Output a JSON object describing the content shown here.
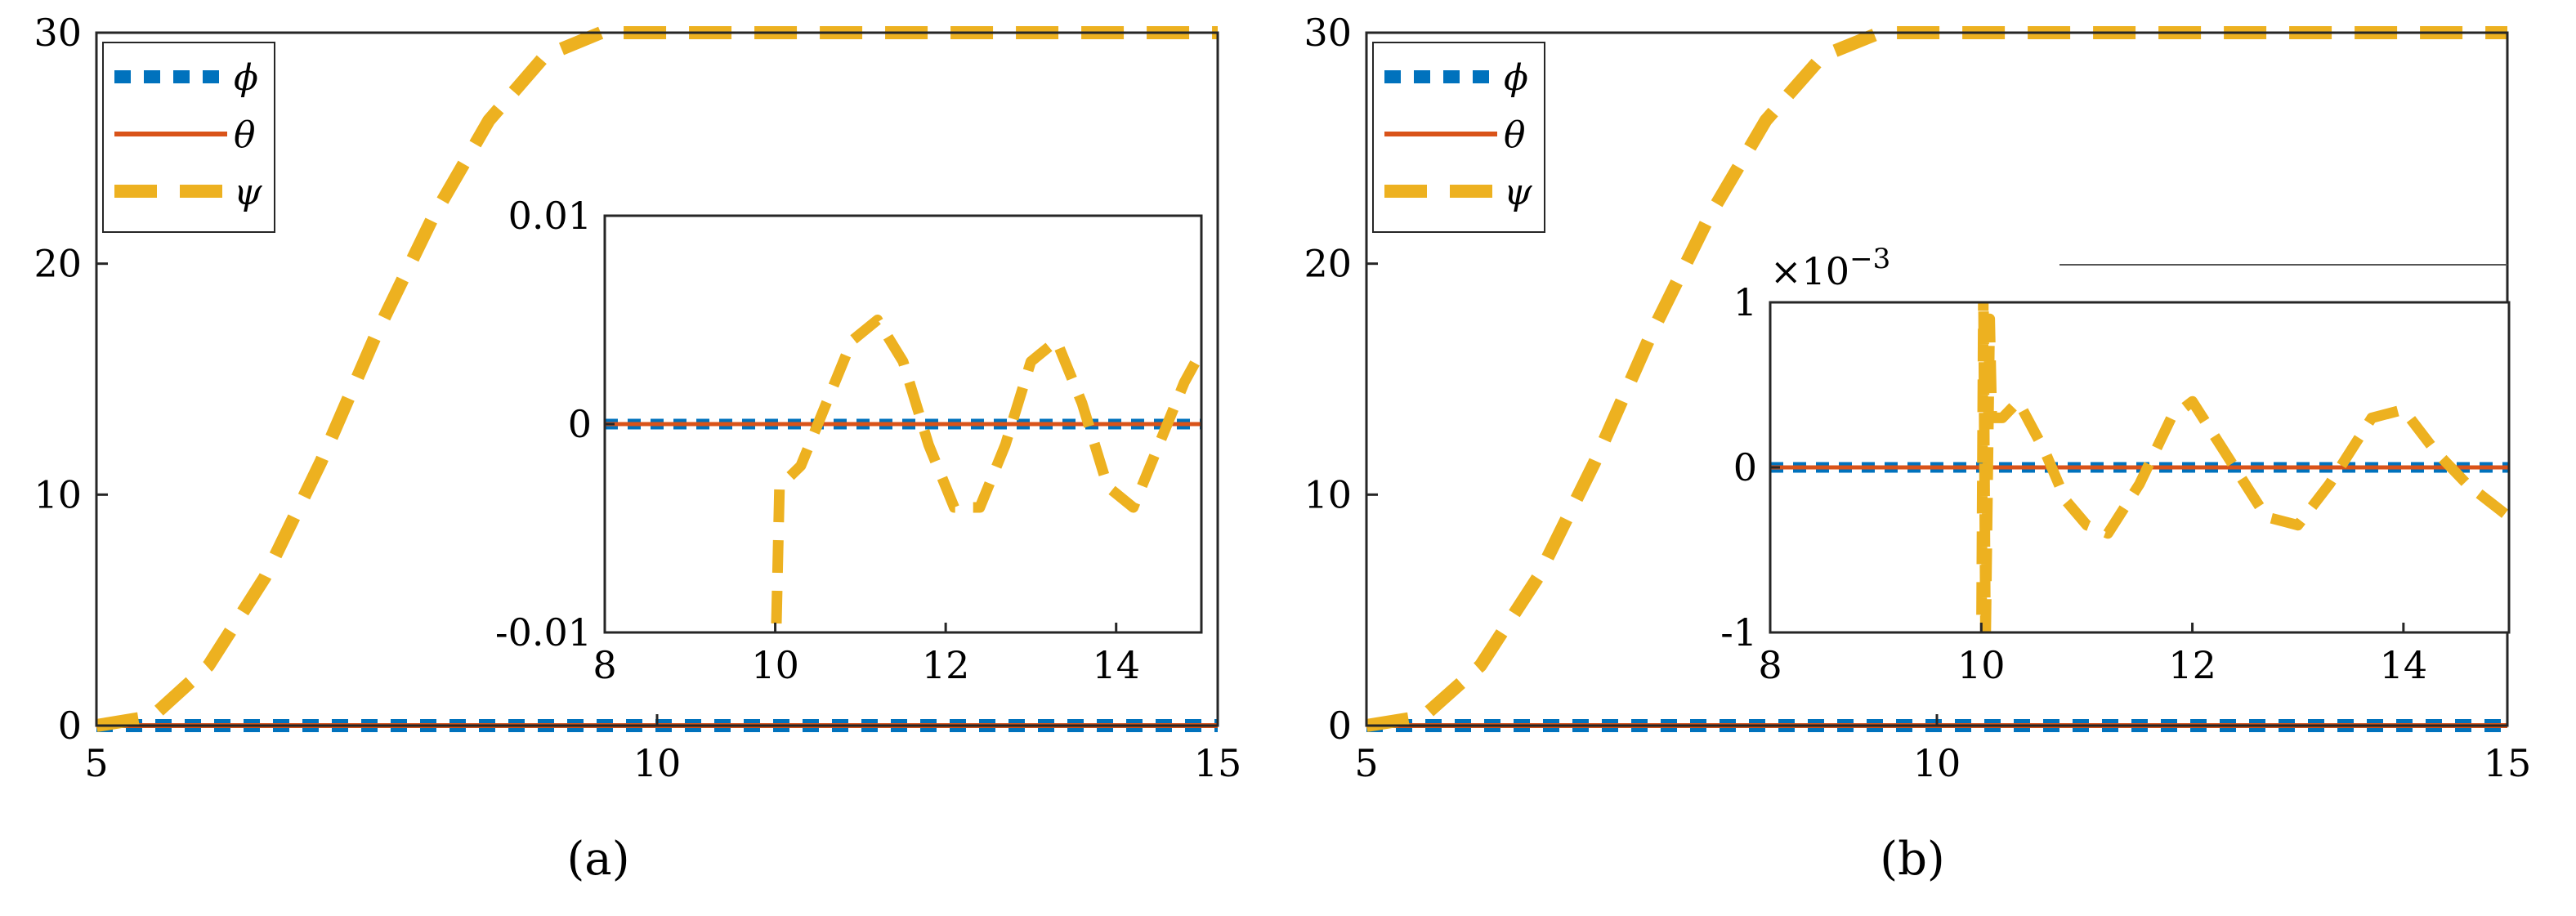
{
  "chart_data": [
    {
      "type": "line",
      "panel_label": "(a)",
      "xlim": [
        5,
        15
      ],
      "ylim": [
        0,
        30
      ],
      "xticks": [
        "5",
        "10",
        "15"
      ],
      "yticks": [
        "0",
        "10",
        "20",
        "30"
      ],
      "legend": {
        "position": "top-left",
        "entries": [
          "ϕ",
          "θ",
          "ψ"
        ]
      },
      "series": [
        {
          "name": "ϕ",
          "style": "dotted",
          "color": "#0072BD",
          "x": [
            5,
            15
          ],
          "y": [
            0,
            0
          ]
        },
        {
          "name": "θ",
          "style": "solid",
          "color": "#D95319",
          "x": [
            5,
            15
          ],
          "y": [
            0,
            0
          ]
        },
        {
          "name": "ψ",
          "style": "dashed",
          "color": "#EDB120",
          "x": [
            5,
            5.5,
            6,
            6.5,
            7,
            7.5,
            8,
            8.5,
            9,
            9.5,
            10,
            10.5,
            11,
            12,
            13,
            14,
            15
          ],
          "y": [
            0,
            0.4,
            2.6,
            6.4,
            11.4,
            17,
            22,
            26.2,
            29,
            30,
            30,
            30,
            30,
            30,
            30,
            30,
            30
          ]
        }
      ],
      "inset": {
        "xlim": [
          8,
          15
        ],
        "ylim": [
          -0.01,
          0.01
        ],
        "xticks": [
          "8",
          "10",
          "12",
          "14"
        ],
        "yticks": [
          "-0.01",
          "0",
          "0.01"
        ],
        "series": [
          {
            "name": "ϕ",
            "x": [
              8,
              15
            ],
            "y": [
              0,
              0
            ]
          },
          {
            "name": "θ",
            "x": [
              8,
              15
            ],
            "y": [
              0,
              0
            ]
          },
          {
            "name": "ψ",
            "x": [
              10,
              10.05,
              10.3,
              10.6,
              10.9,
              11.2,
              11.5,
              11.8,
              12.1,
              12.4,
              12.7,
              13.0,
              13.3,
              13.6,
              13.9,
              14.2,
              14.5,
              14.8,
              15.0
            ],
            "y": [
              -0.012,
              -0.003,
              -0.002,
              0.001,
              0.004,
              0.005,
              0.003,
              -0.001,
              -0.004,
              -0.004,
              -0.001,
              0.003,
              0.004,
              0.001,
              -0.003,
              -0.004,
              -0.001,
              0.002,
              0.0035
            ]
          }
        ]
      }
    },
    {
      "type": "line",
      "panel_label": "(b)",
      "xlim": [
        5,
        15
      ],
      "ylim": [
        0,
        30
      ],
      "xticks": [
        "5",
        "10",
        "15"
      ],
      "yticks": [
        "0",
        "10",
        "20",
        "30"
      ],
      "legend": {
        "position": "top-left",
        "entries": [
          "ϕ",
          "θ",
          "ψ"
        ]
      },
      "series": [
        {
          "name": "ϕ",
          "style": "dotted",
          "color": "#0072BD",
          "x": [
            5,
            15
          ],
          "y": [
            0,
            0
          ]
        },
        {
          "name": "θ",
          "style": "solid",
          "color": "#D95319",
          "x": [
            5,
            15
          ],
          "y": [
            0,
            0
          ]
        },
        {
          "name": "ψ",
          "style": "dashed",
          "color": "#EDB120",
          "x": [
            5,
            5.5,
            6,
            6.5,
            7,
            7.5,
            8,
            8.5,
            9,
            9.5,
            10,
            10.5,
            11,
            12,
            13,
            14,
            15
          ],
          "y": [
            0,
            0.4,
            2.6,
            6.4,
            11.4,
            17,
            22,
            26.2,
            29,
            30,
            30,
            30,
            30,
            30,
            30,
            30,
            30
          ]
        }
      ],
      "inset": {
        "xlim": [
          8,
          15
        ],
        "ylim": [
          -1,
          1
        ],
        "y_multiplier": "×10",
        "y_multiplier_exponent": "−3",
        "xticks": [
          "8",
          "10",
          "12",
          "14"
        ],
        "yticks": [
          "-1",
          "0",
          "1"
        ],
        "series": [
          {
            "name": "ϕ",
            "x": [
              8,
              15
            ],
            "y": [
              0,
              0
            ]
          },
          {
            "name": "θ",
            "x": [
              8,
              15
            ],
            "y": [
              0,
              0
            ]
          },
          {
            "name": "ψ",
            "x": [
              10,
              10.02,
              10.04,
              10.08,
              10.1,
              10.2,
              10.35,
              10.6,
              10.8,
              11.0,
              11.2,
              11.5,
              11.8,
              12.0,
              12.3,
              12.7,
              13.0,
              13.3,
              13.7,
              14.0,
              14.3,
              14.6,
              15.0
            ],
            "y": [
              -1.2,
              1.1,
              -1.1,
              0.9,
              0.3,
              0.3,
              0.4,
              0.1,
              -0.2,
              -0.35,
              -0.4,
              -0.1,
              0.3,
              0.4,
              0.1,
              -0.3,
              -0.35,
              -0.1,
              0.3,
              0.35,
              0.1,
              -0.1,
              -0.3
            ]
          }
        ]
      }
    }
  ]
}
